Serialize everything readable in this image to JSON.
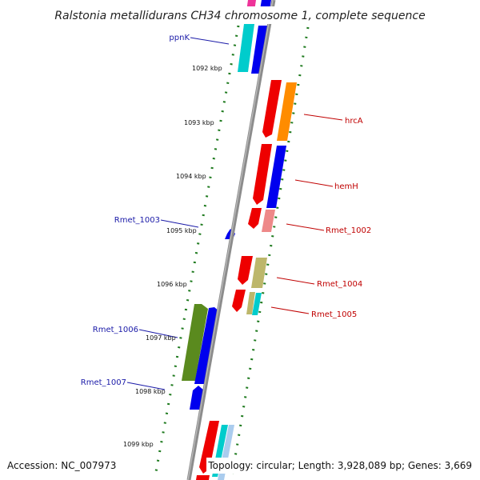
{
  "title": "Ralstonia metallidurans CH34 chromosome 1, complete sequence",
  "accession_text": "Accession: NC_007973",
  "summary_text": "Topology: circular; Length: 3,928,089 bp; Genes: 3,669",
  "colors": {
    "backbone": "#8c8c8c",
    "tick": "#1e7a1e",
    "forward_label": "#1a1aa8",
    "reverse_label": "#c00000",
    "red": "#ee0000",
    "blue": "#0000ee",
    "orange": "#ff8c00",
    "cyan": "#00cccc",
    "olive_green": "#5a8a1e",
    "khaki": "#bdb76b",
    "salmon": "#ee8888",
    "magenta": "#ee3399",
    "light_blue": "#aaccee"
  },
  "kbp_labels": [
    "1092 kbp",
    "1093 kbp",
    "1094 kbp",
    "1095 kbp",
    "1096 kbp",
    "1097 kbp",
    "1098 kbp",
    "1099 kbp"
  ],
  "gene_labels": [
    {
      "id": "ppnK",
      "text": "ppnK",
      "strand": "forward"
    },
    {
      "id": "Rmet_1003",
      "text": "Rmet_1003",
      "strand": "forward"
    },
    {
      "id": "Rmet_1006",
      "text": "Rmet_1006",
      "strand": "forward"
    },
    {
      "id": "Rmet_1007",
      "text": "Rmet_1007",
      "strand": "forward"
    },
    {
      "id": "hrcA",
      "text": "hrcA",
      "strand": "reverse"
    },
    {
      "id": "hemH",
      "text": "hemH",
      "strand": "reverse"
    },
    {
      "id": "Rmet_1002",
      "text": "Rmet_1002",
      "strand": "reverse"
    },
    {
      "id": "Rmet_1004",
      "text": "Rmet_1004",
      "strand": "reverse"
    },
    {
      "id": "Rmet_1005",
      "text": "Rmet_1005",
      "strand": "reverse"
    }
  ]
}
